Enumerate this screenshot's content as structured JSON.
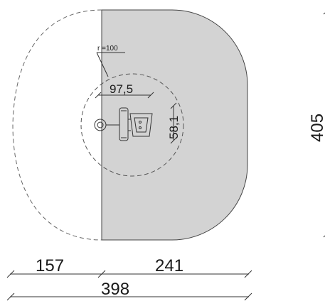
{
  "drawing": {
    "radius_label": "r =100",
    "inner_dimension": "97,5",
    "equipment_dimension": "58,1",
    "overall_depth": "405",
    "left_width": "157",
    "right_width": "241",
    "total_width": "398"
  },
  "colors": {
    "safety_zone_fill": "#d3d3d3",
    "line": "#333333",
    "dashed_line": "#555555"
  }
}
